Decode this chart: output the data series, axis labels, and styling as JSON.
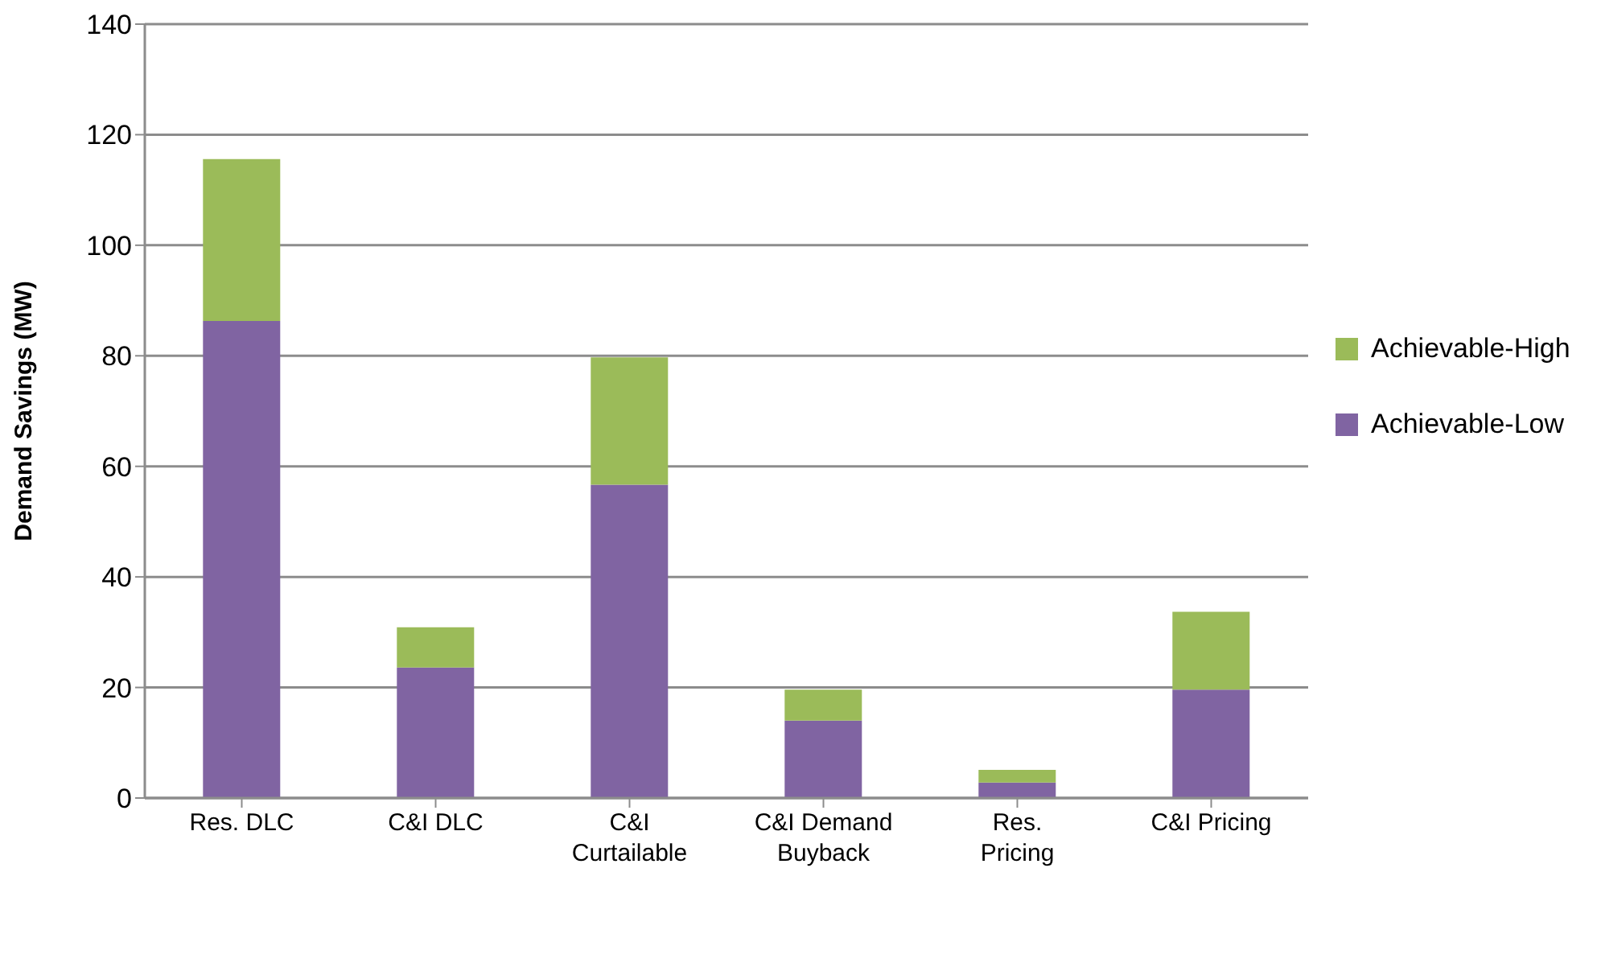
{
  "chart_data": {
    "type": "bar",
    "stacked": true,
    "ylabel": "Demand Savings  (MW)",
    "categories": [
      "Res. DLC",
      "C&I DLC",
      "C&I Curtailable",
      "C&I Demand Buyback",
      "Res. Pricing",
      "C&I Pricing"
    ],
    "series": [
      {
        "name": "Achievable-Low",
        "color": "#8064a2",
        "values": [
          86.3,
          23.6,
          56.7,
          14.0,
          2.8,
          19.6
        ]
      },
      {
        "name": "Achievable-High",
        "color": "#9bbb59",
        "values": [
          29.3,
          7.3,
          23.0,
          5.6,
          2.3,
          14.1
        ]
      }
    ],
    "ylim": [
      0,
      140
    ],
    "yticks": [
      0,
      20,
      40,
      60,
      80,
      100,
      120,
      140
    ],
    "grid": "y",
    "legend": "right"
  }
}
